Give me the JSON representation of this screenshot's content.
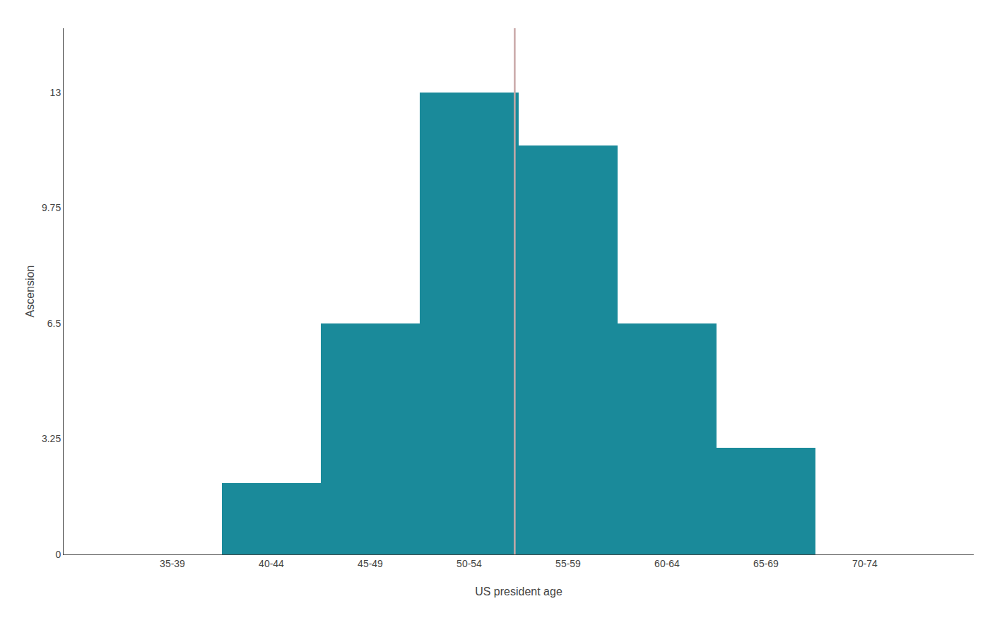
{
  "chart_data": {
    "type": "histogram",
    "bins": [
      35,
      40,
      45,
      50,
      55,
      60,
      65,
      70,
      75
    ],
    "values": [
      0,
      2,
      6.5,
      13,
      11.5,
      6.5,
      3,
      0
    ],
    "color": "#1a8a9a",
    "xlabel": "US president age",
    "ylabel": "Ascension",
    "xlim": [
      32,
      78
    ],
    "xticks": [
      {
        "value": 37.5,
        "label": "35-39"
      },
      {
        "value": 42.5,
        "label": "40-44"
      },
      {
        "value": 47.5,
        "label": "45-49"
      },
      {
        "value": 52.5,
        "label": "50-54"
      },
      {
        "value": 57.5,
        "label": "55-59"
      },
      {
        "value": 62.5,
        "label": "60-64"
      },
      {
        "value": 67.5,
        "label": "65-69"
      },
      {
        "value": 72.5,
        "label": "70-74"
      }
    ],
    "ylim": [
      0,
      14.8
    ],
    "yticks": [
      0,
      3.25,
      6.5,
      9.75,
      13
    ],
    "vline": {
      "x": 54.8,
      "color": "#c9a8a8"
    },
    "grid": false
  }
}
